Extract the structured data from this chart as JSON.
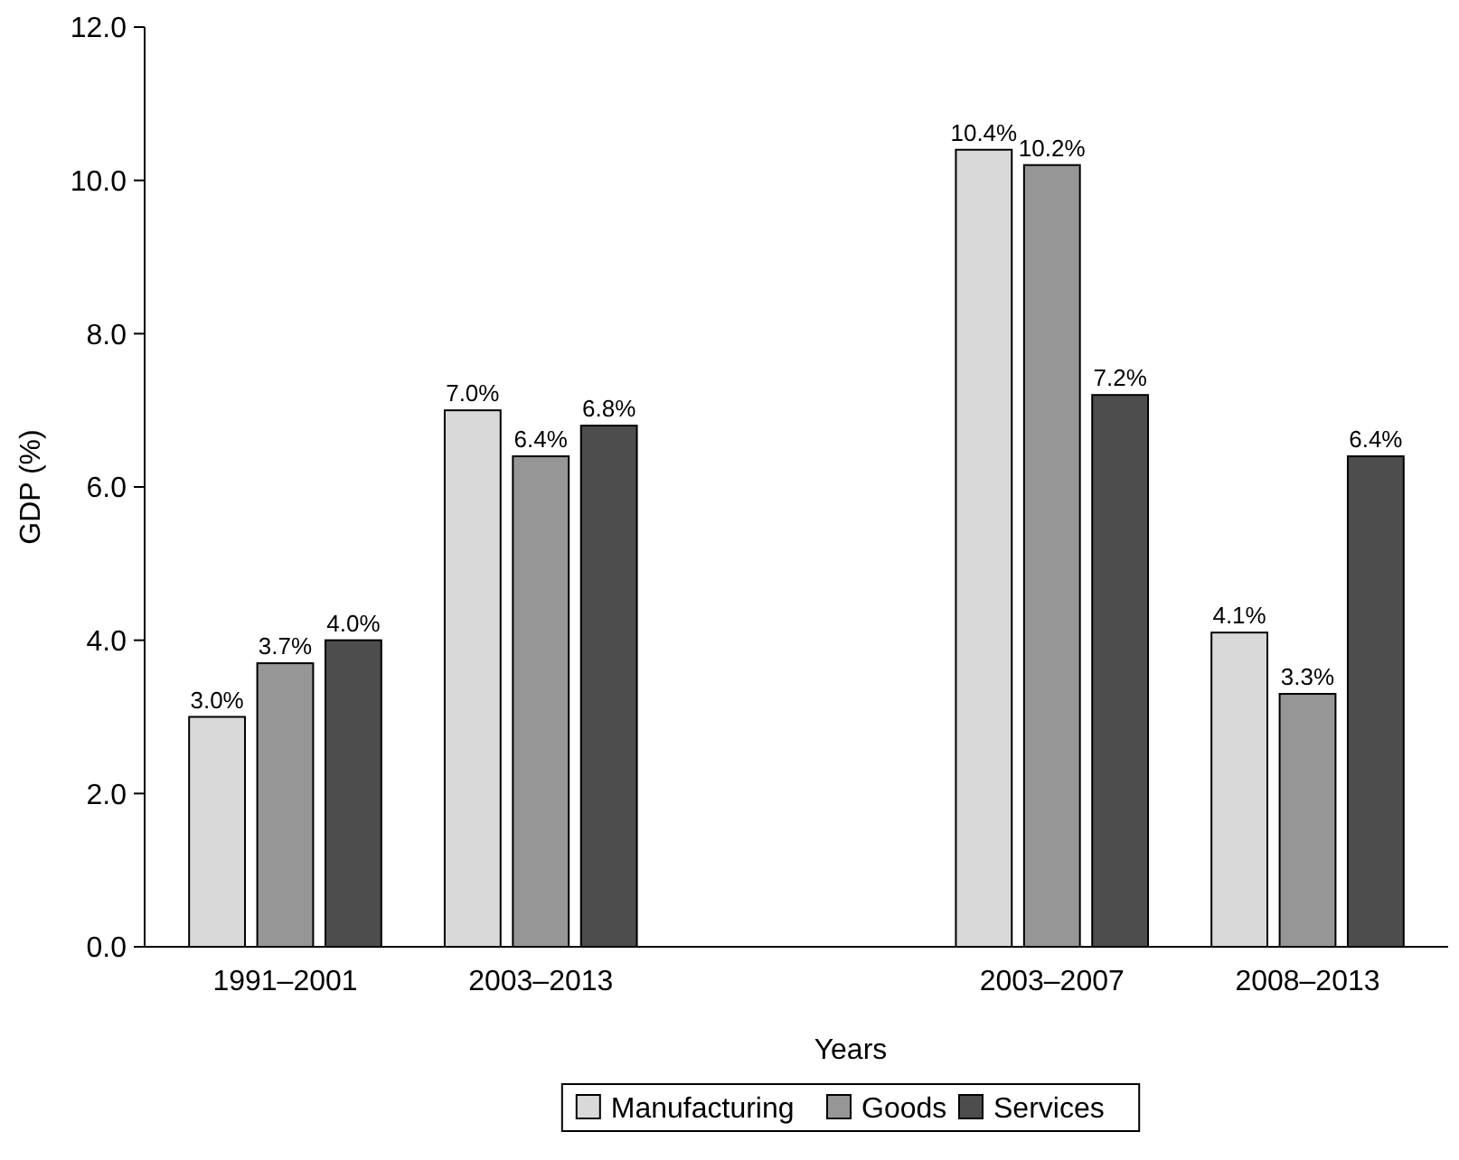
{
  "chart_data": {
    "type": "bar",
    "xlabel": "Years",
    "ylabel": "GDP (%)",
    "categories": [
      "1991–2001",
      "2003–2013",
      null,
      "2003–2007",
      "2008–2013"
    ],
    "series": [
      {
        "name": "Manufacturing",
        "color": "#d9d9d9",
        "values": [
          3.0,
          7.0,
          null,
          10.4,
          4.1
        ],
        "value_labels": [
          "3.0%",
          "7.0%",
          null,
          "10.4%",
          "4.1%"
        ]
      },
      {
        "name": "Goods",
        "color": "#969696",
        "values": [
          3.7,
          6.4,
          null,
          10.2,
          3.3
        ],
        "value_labels": [
          "3.7%",
          "6.4%",
          null,
          "10.2%",
          "3.3%"
        ]
      },
      {
        "name": "Services",
        "color": "#4d4d4d",
        "values": [
          4.0,
          6.8,
          null,
          7.2,
          6.4
        ],
        "value_labels": [
          "4.0%",
          "6.8%",
          null,
          "7.2%",
          "6.4%"
        ]
      }
    ],
    "ylim": [
      0,
      12
    ],
    "yticks": [
      {
        "value": 0,
        "label": "0.0"
      },
      {
        "value": 2,
        "label": "2.0"
      },
      {
        "value": 4,
        "label": "4.0"
      },
      {
        "value": 6,
        "label": "6.0"
      },
      {
        "value": 8,
        "label": "8.0"
      },
      {
        "value": 10,
        "label": "10.0"
      },
      {
        "value": 12,
        "label": "12.0"
      }
    ],
    "grid": false,
    "legend": "bottom"
  }
}
